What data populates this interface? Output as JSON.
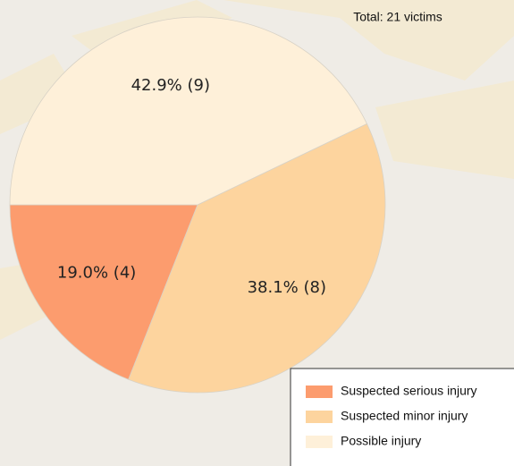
{
  "chart_data": {
    "type": "pie",
    "title": "Total: 21 victims",
    "categories": [
      "Suspected serious injury",
      "Suspected minor injury",
      "Possible injury"
    ],
    "values": [
      19.0,
      38.1,
      42.9
    ],
    "value_labels": [
      "19.0%  (4)",
      "38.1%  (8)",
      "42.9%  (9)"
    ],
    "colors": [
      "#fc9c6e",
      "#fdd49e",
      "#fef0d9"
    ],
    "legend": "lower right"
  }
}
